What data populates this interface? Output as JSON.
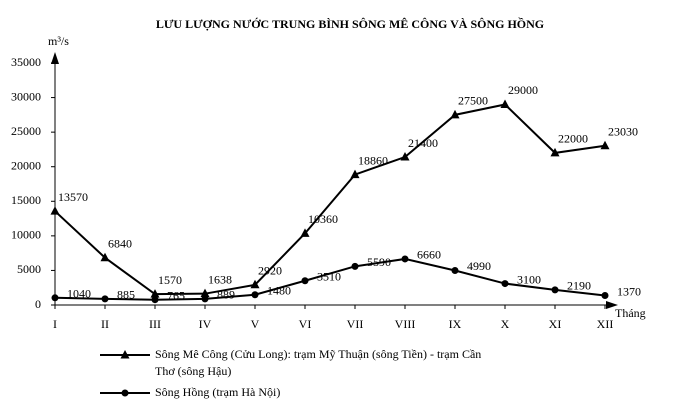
{
  "chart_data": {
    "type": "line",
    "title": "LƯU LƯỢNG NƯỚC TRUNG BÌNH SÔNG MÊ CÔNG VÀ SÔNG HỒNG",
    "y_label": "m³/s",
    "x_label": "Tháng",
    "categories": [
      "I",
      "II",
      "III",
      "IV",
      "V",
      "VI",
      "VII",
      "VIII",
      "IX",
      "X",
      "XI",
      "XII"
    ],
    "series": [
      {
        "name": "Sông Mê Công (Cửu Long): trạm Mỹ Thuận (sông Tiền) - trạm Cần Thơ (sông Hậu)",
        "color": "#000000",
        "marker": "triangle",
        "values": [
          13570,
          6840,
          1570,
          1638,
          2920,
          10360,
          18860,
          21400,
          27500,
          29000,
          22000,
          23030
        ]
      },
      {
        "name": "Sông Hồng (trạm Hà Nội)",
        "color": "#000000",
        "marker": "circle",
        "values": [
          1040,
          885,
          765,
          889,
          1480,
          3510,
          5590,
          6660,
          4990,
          3100,
          2190,
          1370
        ]
      }
    ],
    "ylim": [
      0,
      35000
    ],
    "yticks": [
      0,
      5000,
      10000,
      15000,
      20000,
      25000,
      30000,
      35000
    ],
    "grid": false
  }
}
